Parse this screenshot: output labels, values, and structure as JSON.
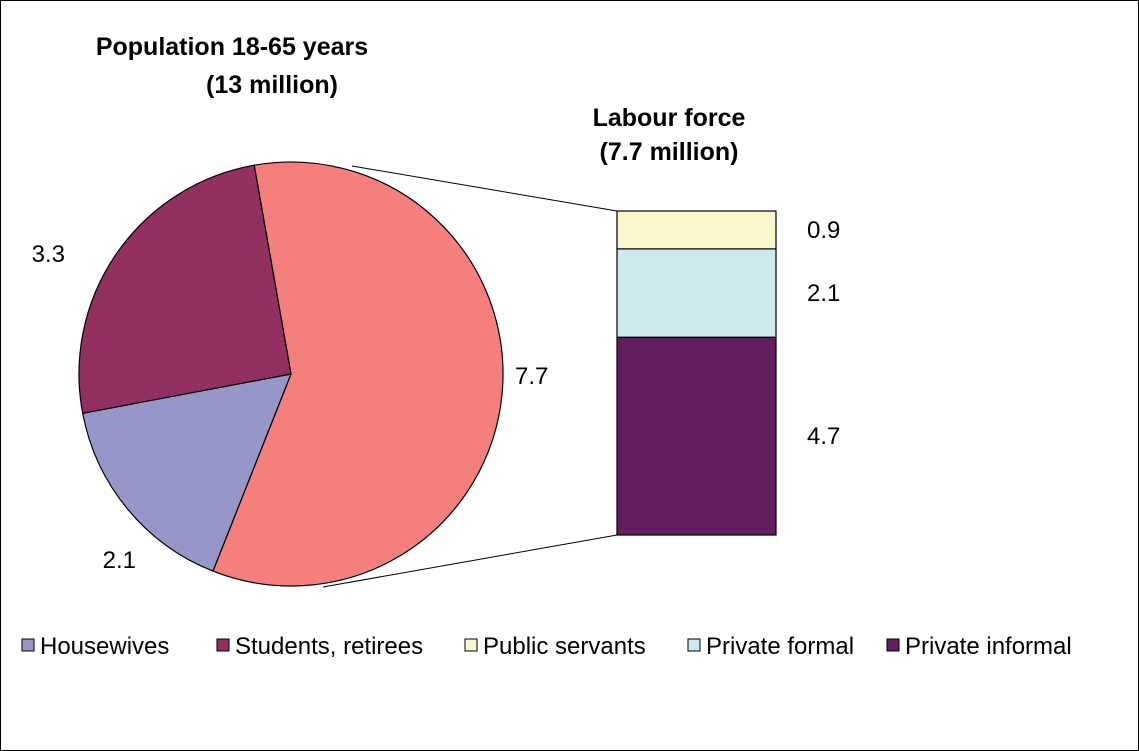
{
  "chart_data": {
    "type": "bar-of-pie",
    "pie": {
      "title_line1": "Population 18-65 years",
      "title_line2": "(13 million)",
      "slices": [
        {
          "name": "Labour force",
          "value": 7.7,
          "label": "7.7",
          "color": "#f47f7d"
        },
        {
          "name": "Housewives",
          "value": 2.1,
          "label": "2.1",
          "color": "#9696c8"
        },
        {
          "name": "Students, retirees",
          "value": 3.3,
          "label": "3.3",
          "color": "#923062"
        }
      ]
    },
    "bar": {
      "title_line1": "Labour force",
      "title_line2": "(7.7 million)",
      "segments": [
        {
          "name": "Private informal",
          "value": 4.7,
          "label": "4.7",
          "color": "#621e5e"
        },
        {
          "name": "Private formal",
          "value": 2.1,
          "label": "2.1",
          "color": "#cde9f0"
        },
        {
          "name": "Public servants",
          "value": 0.9,
          "label": "0.9",
          "color": "#faf7cc"
        }
      ]
    },
    "legend": {
      "placement": "bottom",
      "items": [
        {
          "label": "Housewives",
          "color": "#9696c8"
        },
        {
          "label": "Students, retirees",
          "color": "#923062"
        },
        {
          "label": "Public servants",
          "color": "#faf7cc"
        },
        {
          "label": "Private formal",
          "color": "#cde9f0"
        },
        {
          "label": "Private informal",
          "color": "#621e5e"
        }
      ]
    }
  }
}
